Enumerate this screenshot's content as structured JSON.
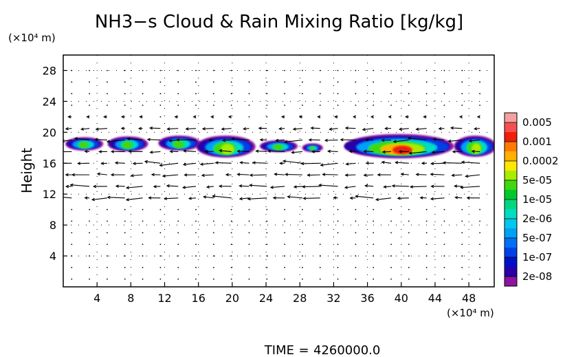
{
  "chart_data": {
    "type": "heatmap",
    "title": "NH3−s Cloud & Rain Mixing Ratio [kg/kg]",
    "ylabel": "Height",
    "y_unit": "(×10⁴ m)",
    "x_unit": "(×10⁴ m)",
    "xlim": [
      0,
      51
    ],
    "ylim": [
      0,
      30
    ],
    "x_ticks": [
      4,
      8,
      12,
      16,
      20,
      24,
      28,
      32,
      36,
      40,
      44,
      48
    ],
    "y_ticks": [
      4,
      8,
      12,
      16,
      20,
      24,
      28
    ],
    "grid": "dotted",
    "time_label": "TIME",
    "time_value": "4260000.0",
    "colorbar": {
      "labels": [
        "0.005",
        "0.001",
        "0.0002",
        "5e-05",
        "1e-05",
        "2e-06",
        "5e-07",
        "1e-07",
        "2e-08"
      ],
      "colors": [
        "#f5a0a0",
        "#f55050",
        "#f01e0a",
        "#ff7a00",
        "#ffb000",
        "#ffe800",
        "#a8ec00",
        "#40d810",
        "#00c830",
        "#00d880",
        "#00dcc0",
        "#00c8ec",
        "#00a0f5",
        "#0070f5",
        "#0040e6",
        "#0010c8",
        "#2800a8",
        "#8c14a0"
      ]
    },
    "cloud_regions": [
      {
        "x": [
          0.5,
          4.5
        ],
        "y": [
          17.8,
          19.2
        ],
        "max_level": "2e-06"
      },
      {
        "x": [
          5.5,
          9.8
        ],
        "y": [
          17.7,
          19.3
        ],
        "max_level": "2e-06"
      },
      {
        "x": [
          11.5,
          16.0
        ],
        "y": [
          17.8,
          19.4
        ],
        "max_level": "2e-06"
      },
      {
        "x": [
          16.0,
          22.5
        ],
        "y": [
          16.9,
          19.4
        ],
        "max_level": "1e-05"
      },
      {
        "x": [
          23.5,
          27.5
        ],
        "y": [
          17.6,
          18.8
        ],
        "max_level": "2e-06"
      },
      {
        "x": [
          28.5,
          30.5
        ],
        "y": [
          17.6,
          18.4
        ],
        "max_level": "2e-06"
      },
      {
        "x": [
          33.5,
          46.0
        ],
        "y": [
          16.8,
          19.6
        ],
        "max_level": "0.0002"
      },
      {
        "x": [
          46.5,
          51.0
        ],
        "y": [
          17.0,
          19.4
        ],
        "max_level": "1e-05"
      }
    ]
  }
}
